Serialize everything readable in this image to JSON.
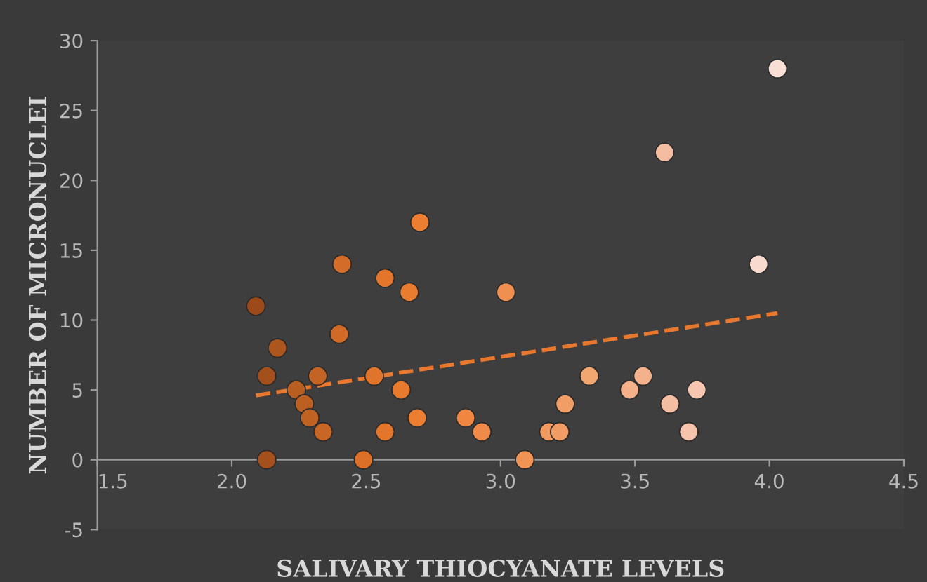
{
  "chart_data": {
    "type": "scatter",
    "xlabel": "SALIVARY THIOCYANATE LEVELS",
    "ylabel": "NUMBER OF MICRONUCLEI",
    "xlim": [
      1.5,
      4.5
    ],
    "xticks": [
      1.5,
      {
        "value": 2,
        "label": "2.0"
      },
      2.5,
      {
        "value": 3,
        "label": "3.0"
      },
      3.5,
      {
        "value": 4,
        "label": "4.0"
      },
      4.5
    ],
    "ylim": [
      -5,
      30
    ],
    "yticks": [
      -5,
      0,
      5,
      10,
      15,
      20,
      25,
      30
    ],
    "grid": false,
    "marker": "circle",
    "series": [
      {
        "x": [
          2.09,
          2.13,
          2.13,
          2.17,
          2.24,
          2.27,
          2.29,
          2.32,
          2.34,
          2.4,
          2.41,
          2.49,
          2.53,
          2.57,
          2.57,
          2.63,
          2.66,
          2.69,
          2.7,
          2.87,
          2.93,
          3.02,
          3.09,
          3.18,
          3.22,
          3.24,
          3.33,
          3.48,
          3.53,
          3.61,
          3.63,
          3.7,
          3.73,
          3.96,
          4.03
        ],
        "values": [
          11,
          6,
          0,
          8,
          5,
          4,
          3,
          6,
          2,
          9,
          14,
          0,
          6,
          13,
          2,
          5,
          12,
          3,
          17,
          3,
          2,
          12,
          0,
          2,
          2,
          4,
          6,
          5,
          6,
          22,
          4,
          2,
          5,
          14,
          28
        ],
        "colors": [
          "#9c4a1a",
          "#a4501c",
          "#a4501c",
          "#ac561e",
          "#b85e20",
          "#bc6022",
          "#c06222",
          "#c46424",
          "#c86626",
          "#d06a26",
          "#d26c28",
          "#dc7028",
          "#e0742a",
          "#e4762c",
          "#e4762c",
          "#e87a2e",
          "#ea7c30",
          "#ec7e32",
          "#ec7e32",
          "#f08640",
          "#f08a48",
          "#f09050",
          "#f09456",
          "#f09a60",
          "#f09c64",
          "#f09e66",
          "#f2a670",
          "#f4b088",
          "#f4b28c",
          "#f4bca0",
          "#f4bea2",
          "#f6c4ac",
          "#f6c6b0",
          "#f8dace",
          "#f8dfd6"
        ]
      },
      {
        "type": "line",
        "color": "#e8782e",
        "line_style": "dashed",
        "marker": "none",
        "x": [
          2.09,
          4.03
        ],
        "values": [
          4.6,
          10.5
        ]
      }
    ]
  }
}
